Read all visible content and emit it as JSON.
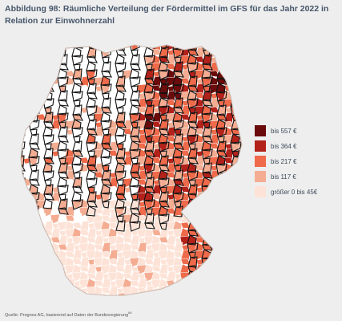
{
  "figure": {
    "title": "Abbildung 98: Räumliche Verteilung der Fördermittel im GFS für das Jahr 2022 in Relation zur Einwohnerzahl",
    "source_text": "Quelle: Prognos AG, basierend auf Daten der Bundesregierung",
    "source_footnote": "84"
  },
  "legend": {
    "items": [
      {
        "label": "bis 557 €",
        "color": "#6b0b0b"
      },
      {
        "label": "bis 364 €",
        "color": "#b3221a"
      },
      {
        "label": "bis 217 €",
        "color": "#ee6a4a"
      },
      {
        "label": "bis 117 €",
        "color": "#f4ad92"
      },
      {
        "label": "größer 0 bis 45€",
        "color": "#fde3d7"
      }
    ]
  },
  "map": {
    "region": "Germany (districts)",
    "border_color": "#111111",
    "district_line_color": "#ffffff"
  }
}
